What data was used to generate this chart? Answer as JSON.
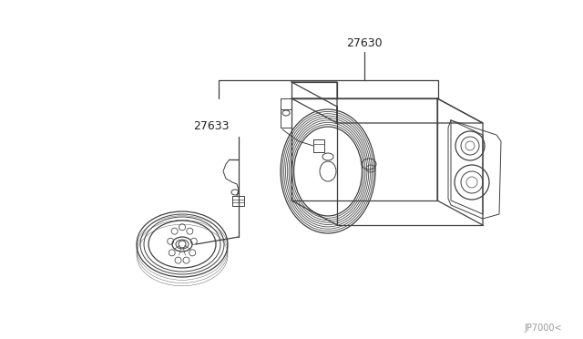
{
  "bg_color": "#ffffff",
  "line_color": "#404040",
  "label_color": "#222222",
  "watermark_color": "#999999",
  "label_27630": "27630",
  "label_27633": "27633",
  "watermark": "JP7000<",
  "lw_main": 0.9,
  "lw_detail": 0.7
}
